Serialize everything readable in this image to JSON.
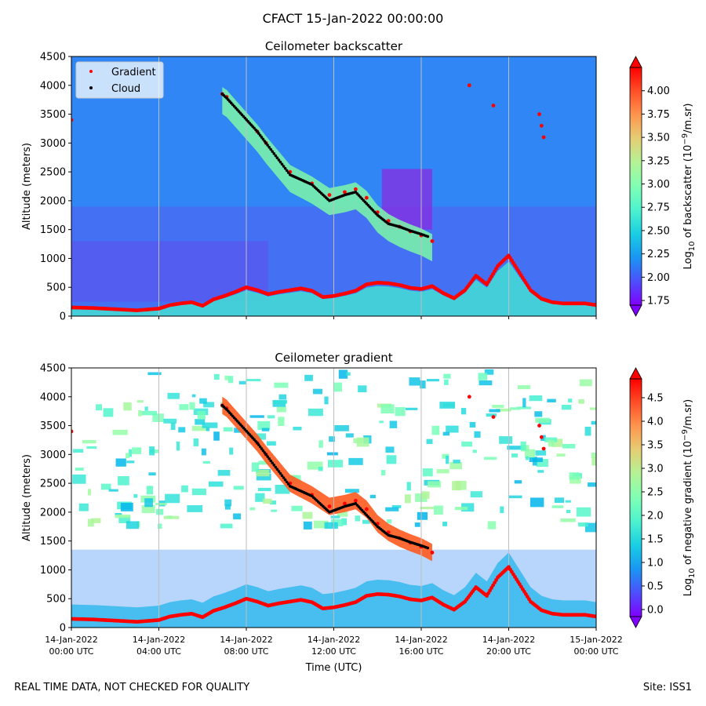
{
  "figure": {
    "title": "CFACT 15-Jan-2022 00:00:00",
    "footer_left": "REAL TIME DATA, NOT CHECKED FOR QUALITY",
    "footer_right": "Site: ISS1"
  },
  "chart_data": [
    {
      "type": "heatmap",
      "title": "Ceilometer backscatter",
      "ylabel": "Altitude (meters)",
      "ylim": [
        0,
        4500
      ],
      "y_ticks": [
        0,
        500,
        1000,
        1500,
        2000,
        2500,
        3000,
        3500,
        4000,
        4500
      ],
      "xlim_hours": [
        0,
        24
      ],
      "x_ticks_hours": [
        0,
        4,
        8,
        12,
        16,
        20,
        24
      ],
      "colorbar": {
        "label": "Log10 of backscatter (10^-9/m.sr)",
        "label_parts": [
          "Log",
          "10",
          " of backscatter (10",
          "−9",
          "/m.sr)"
        ],
        "range": [
          1.7,
          4.25
        ],
        "ticks": [
          1.75,
          2.0,
          2.25,
          2.5,
          2.75,
          3.0,
          3.25,
          3.5,
          3.75,
          4.0
        ],
        "tick_labels": [
          "1.75",
          "2.00",
          "2.25",
          "2.50",
          "2.75",
          "3.00",
          "3.25",
          "3.50",
          "3.75",
          "4.00"
        ]
      },
      "legend": {
        "position": "top-left",
        "entries": [
          {
            "name": "Gradient",
            "color": "#ff0000"
          },
          {
            "name": "Cloud",
            "color": "#000000"
          }
        ]
      },
      "series": [
        {
          "name": "Gradient",
          "color": "#ff0000",
          "points": [
            [
              0,
              150
            ],
            [
              1,
              140
            ],
            [
              2,
              120
            ],
            [
              3,
              100
            ],
            [
              4,
              130
            ],
            [
              4.5,
              190
            ],
            [
              5,
              220
            ],
            [
              5.5,
              240
            ],
            [
              6,
              180
            ],
            [
              6.5,
              290
            ],
            [
              7,
              350
            ],
            [
              7.5,
              420
            ],
            [
              8,
              500
            ],
            [
              8.5,
              450
            ],
            [
              9,
              380
            ],
            [
              9.5,
              420
            ],
            [
              10,
              450
            ],
            [
              10.5,
              480
            ],
            [
              11,
              440
            ],
            [
              11.5,
              330
            ],
            [
              12,
              350
            ],
            [
              12.5,
              390
            ],
            [
              13,
              440
            ],
            [
              13.5,
              550
            ],
            [
              14,
              580
            ],
            [
              14.5,
              570
            ],
            [
              15,
              540
            ],
            [
              15.5,
              490
            ],
            [
              16,
              470
            ],
            [
              16.5,
              520
            ],
            [
              17,
              400
            ],
            [
              17.5,
              310
            ],
            [
              18,
              450
            ],
            [
              18.5,
              700
            ],
            [
              19,
              550
            ],
            [
              19.5,
              870
            ],
            [
              20,
              1050
            ],
            [
              20.5,
              750
            ],
            [
              21,
              450
            ],
            [
              21.5,
              300
            ],
            [
              22,
              240
            ],
            [
              22.5,
              220
            ],
            [
              23,
              220
            ],
            [
              23.5,
              220
            ],
            [
              24,
              190
            ]
          ]
        },
        {
          "name": "Gradient (upper layer)",
          "color": "#ff0000",
          "points": [
            [
              6.9,
              3850
            ],
            [
              7.1,
              3800
            ],
            [
              8.5,
              3200
            ],
            [
              8.9,
              3000
            ],
            [
              10,
              2500
            ],
            [
              11,
              2300
            ],
            [
              11.8,
              2100
            ],
            [
              12.5,
              2150
            ],
            [
              13,
              2200
            ],
            [
              13.5,
              2050
            ],
            [
              14,
              1800
            ],
            [
              14.5,
              1650
            ],
            [
              15,
              1550
            ],
            [
              15.5,
              1470
            ],
            [
              16,
              1400
            ],
            [
              16.5,
              1300
            ]
          ]
        },
        {
          "name": "Gradient (scattered)",
          "color": "#ff0000",
          "points": [
            [
              18.2,
              4000
            ],
            [
              19.3,
              3650
            ],
            [
              21.4,
              3500
            ],
            [
              21.5,
              3300
            ],
            [
              21.6,
              3100
            ],
            [
              0,
              3400
            ]
          ]
        },
        {
          "name": "Cloud",
          "color": "#000000",
          "points": [
            [
              6.9,
              3850
            ],
            [
              7.1,
              3780
            ],
            [
              8.5,
              3200
            ],
            [
              8.9,
              3000
            ],
            [
              10,
              2450
            ],
            [
              11,
              2280
            ],
            [
              11.8,
              2000
            ],
            [
              12.5,
              2100
            ],
            [
              13,
              2150
            ],
            [
              13.5,
              1950
            ],
            [
              14,
              1750
            ],
            [
              14.5,
              1600
            ],
            [
              15,
              1550
            ],
            [
              15.5,
              1480
            ],
            [
              16,
              1420
            ],
            [
              16.3,
              1380
            ]
          ]
        }
      ]
    },
    {
      "type": "heatmap",
      "title": "Ceilometer gradient",
      "ylabel": "Altitude (meters)",
      "xlabel": "Time (UTC)",
      "ylim": [
        0,
        4500
      ],
      "y_ticks": [
        0,
        500,
        1000,
        1500,
        2000,
        2500,
        3000,
        3500,
        4000,
        4500
      ],
      "xlim_hours": [
        0,
        24
      ],
      "x_ticks_hours": [
        0,
        4,
        8,
        12,
        16,
        20,
        24
      ],
      "x_tick_labels": [
        [
          "14-Jan-2022",
          "00:00 UTC"
        ],
        [
          "14-Jan-2022",
          "04:00 UTC"
        ],
        [
          "14-Jan-2022",
          "08:00 UTC"
        ],
        [
          "14-Jan-2022",
          "12:00 UTC"
        ],
        [
          "14-Jan-2022",
          "16:00 UTC"
        ],
        [
          "14-Jan-2022",
          "20:00 UTC"
        ],
        [
          "15-Jan-2022",
          "00:00 UTC"
        ]
      ],
      "colorbar": {
        "label": "Log10 of negative gradient (10^-9/m.sr)",
        "label_parts": [
          "Log",
          "10",
          " of negative gradient (10",
          "−9",
          "/m.sr)"
        ],
        "range": [
          -0.15,
          4.9
        ],
        "ticks": [
          0.0,
          0.5,
          1.0,
          1.5,
          2.0,
          2.5,
          3.0,
          3.5,
          4.0,
          4.5
        ],
        "tick_labels": [
          "0.0",
          "0.5",
          "1.0",
          "1.5",
          "2.0",
          "2.5",
          "3.0",
          "3.5",
          "4.0",
          "4.5"
        ]
      }
    }
  ]
}
